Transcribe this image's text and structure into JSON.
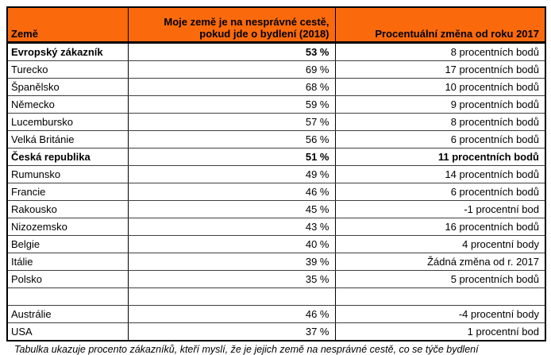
{
  "chart_data": {
    "type": "table",
    "accent_color": "#fa6a0c",
    "columns": [
      {
        "id": "country",
        "lines": [
          "Země"
        ]
      },
      {
        "id": "value_2018",
        "lines": [
          "Moje země je na nesprávné cestě,",
          "pokud jde o bydlení (2018)"
        ]
      },
      {
        "id": "change_since_2017",
        "lines": [
          "Procentuální změna od roku 2017"
        ]
      }
    ],
    "rows": [
      {
        "country": "Evropský zákazník",
        "value": "53 %",
        "change": "8 procentních bodů",
        "emphasis": "name_value"
      },
      {
        "country": "Turecko",
        "value": "69 %",
        "change": "17 procentních bodů",
        "emphasis": "none"
      },
      {
        "country": "Španělsko",
        "value": "68 %",
        "change": "10 procentních bodů",
        "emphasis": "none"
      },
      {
        "country": "Německo",
        "value": "59 %",
        "change": "9 procentních bodů",
        "emphasis": "none"
      },
      {
        "country": "Lucembursko",
        "value": "57 %",
        "change": "8 procentních bodů",
        "emphasis": "none"
      },
      {
        "country": "Velká Británie",
        "value": "56 %",
        "change": "6 procentních bodů",
        "emphasis": "none"
      },
      {
        "country": "Česká republika",
        "value": "51 %",
        "change": "11 procentních bodů",
        "emphasis": "all"
      },
      {
        "country": "Rumunsko",
        "value": "49 %",
        "change": "14 procentních bodů",
        "emphasis": "none"
      },
      {
        "country": "Francie",
        "value": "46 %",
        "change": "6 procentních bodů",
        "emphasis": "none"
      },
      {
        "country": "Rakousko",
        "value": "45 %",
        "change": "-1 procentní bod",
        "emphasis": "none"
      },
      {
        "country": "Nizozemsko",
        "value": "43 %",
        "change": "16 procentních bodů",
        "emphasis": "none"
      },
      {
        "country": "Belgie",
        "value": "40 %",
        "change": "4 procentní body",
        "emphasis": "none"
      },
      {
        "country": "Itálie",
        "value": "39 %",
        "change": "Žádná změna od r. 2017",
        "emphasis": "none"
      },
      {
        "country": "Polsko",
        "value": "35 %",
        "change": "5 procentních bodů",
        "emphasis": "none"
      },
      {
        "country": "",
        "value": "",
        "change": "",
        "emphasis": "none"
      },
      {
        "country": "Austrálie",
        "value": "46 %",
        "change": "-4 procentní body",
        "emphasis": "none"
      },
      {
        "country": "USA",
        "value": "37 %",
        "change": "1 procentní bod",
        "emphasis": "none"
      }
    ],
    "caption": "Tabulka ukazuje procento zákazníků, kteří myslí, že je jejich země na nesprávné cestě, co se týče bydlení"
  }
}
